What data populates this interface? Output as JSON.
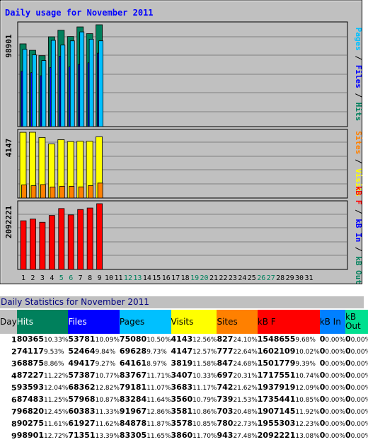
{
  "chart_data": {
    "type": "bar",
    "title": "Daily usage for November 2011",
    "x": [
      "1",
      "2",
      "3",
      "4",
      "5",
      "6",
      "7",
      "8",
      "9",
      "10",
      "11",
      "12",
      "13",
      "14",
      "15",
      "16",
      "17",
      "18",
      "19",
      "20",
      "21",
      "22",
      "23",
      "24",
      "25",
      "26",
      "27",
      "28",
      "29",
      "30",
      "31"
    ],
    "weekend_days": [
      "5",
      "6",
      "12",
      "13",
      "19",
      "20",
      "26",
      "27"
    ],
    "panels": [
      {
        "ylabel": "Pages / Files / Hits",
        "max_label": "98901",
        "ylim": [
          0,
          98901
        ],
        "series": [
          {
            "name": "Hits",
            "color": "#00805c",
            "values": [
              80365,
              74117,
              68875,
              87227,
              93593,
              87483,
              96820,
              90275,
              98901
            ]
          },
          {
            "name": "Files",
            "color": "#0000ff",
            "values": [
              53781,
              52464,
              49417,
              57387,
              68362,
              57968,
              60383,
              61927,
              71351
            ]
          },
          {
            "name": "Pages",
            "color": "#00c0ff",
            "values": [
              75080,
              69628,
              64161,
              83767,
              79181,
              83284,
              91967,
              84878,
              83305
            ]
          }
        ]
      },
      {
        "ylabel": "Sites / Visits",
        "max_label": "4147",
        "ylim": [
          0,
          4147
        ],
        "series": [
          {
            "name": "Visits",
            "color": "#ffff00",
            "values": [
              4143,
              4147,
              3819,
              3407,
              3683,
              3560,
              3581,
              3578,
              3860
            ]
          },
          {
            "name": "Sites",
            "color": "#ff8000",
            "values": [
              827,
              777,
              847,
              697,
              742,
              739,
              703,
              780,
              943
            ]
          }
        ]
      },
      {
        "ylabel": "kB F / kB In / kB Out",
        "max_label": "2092221",
        "ylim": [
          0,
          2092221
        ],
        "series": [
          {
            "name": "kB F",
            "color": "#ff0000",
            "values": [
              1548655,
              1602109,
              1501779,
              1717551,
              1937919,
              1735441,
              1907145,
              1955303,
              2092221
            ]
          }
        ]
      }
    ]
  },
  "table": {
    "title": "Daily Statistics for November 2011",
    "headers": [
      {
        "label": "Day",
        "color": "#c0c0c0"
      },
      {
        "label": "Hits",
        "color": "#00805c"
      },
      {
        "label": "Files",
        "color": "#0000ff"
      },
      {
        "label": "Pages",
        "color": "#00c0ff"
      },
      {
        "label": "Visits",
        "color": "#ffff00"
      },
      {
        "label": "Sites",
        "color": "#ff8000"
      },
      {
        "label": "kB F",
        "color": "#ff0000"
      },
      {
        "label": "kB In",
        "color": "#0080ff"
      },
      {
        "label": "kB Out",
        "color": "#00e090"
      }
    ],
    "rows": [
      {
        "day": "1",
        "hits": "80365",
        "hits_pct": "10.33%",
        "files": "53781",
        "files_pct": "10.09%",
        "pages": "75080",
        "pages_pct": "10.50%",
        "visits": "4143",
        "visits_pct": "12.56%",
        "sites": "827",
        "sites_pct": "24.10%",
        "kbf": "1548655",
        "kbf_pct": "9.68%",
        "kbin": "0",
        "kbin_pct": "0.00%",
        "kbout": "0",
        "kbout_pct": "0.00%"
      },
      {
        "day": "2",
        "hits": "74117",
        "hits_pct": "9.53%",
        "files": "52464",
        "files_pct": "9.84%",
        "pages": "69628",
        "pages_pct": "9.73%",
        "visits": "4147",
        "visits_pct": "12.57%",
        "sites": "777",
        "sites_pct": "22.64%",
        "kbf": "1602109",
        "kbf_pct": "10.02%",
        "kbin": "0",
        "kbin_pct": "0.00%",
        "kbout": "0",
        "kbout_pct": "0.00%"
      },
      {
        "day": "3",
        "hits": "68875",
        "hits_pct": "8.86%",
        "files": "49417",
        "files_pct": "9.27%",
        "pages": "64161",
        "pages_pct": "8.97%",
        "visits": "3819",
        "visits_pct": "11.58%",
        "sites": "847",
        "sites_pct": "24.68%",
        "kbf": "1501779",
        "kbf_pct": "9.39%",
        "kbin": "0",
        "kbin_pct": "0.00%",
        "kbout": "0",
        "kbout_pct": "0.00%"
      },
      {
        "day": "4",
        "hits": "87227",
        "hits_pct": "11.22%",
        "files": "57387",
        "files_pct": "10.77%",
        "pages": "83767",
        "pages_pct": "11.71%",
        "visits": "3407",
        "visits_pct": "10.33%",
        "sites": "697",
        "sites_pct": "20.31%",
        "kbf": "1717551",
        "kbf_pct": "10.74%",
        "kbin": "0",
        "kbin_pct": "0.00%",
        "kbout": "0",
        "kbout_pct": "0.00%"
      },
      {
        "day": "5",
        "hits": "93593",
        "hits_pct": "12.04%",
        "files": "68362",
        "files_pct": "12.82%",
        "pages": "79181",
        "pages_pct": "11.07%",
        "visits": "3683",
        "visits_pct": "11.17%",
        "sites": "742",
        "sites_pct": "21.62%",
        "kbf": "1937919",
        "kbf_pct": "12.09%",
        "kbin": "0",
        "kbin_pct": "0.00%",
        "kbout": "0",
        "kbout_pct": "0.00%"
      },
      {
        "day": "6",
        "hits": "87483",
        "hits_pct": "11.25%",
        "files": "57968",
        "files_pct": "10.87%",
        "pages": "83284",
        "pages_pct": "11.64%",
        "visits": "3560",
        "visits_pct": "10.79%",
        "sites": "739",
        "sites_pct": "21.53%",
        "kbf": "1735441",
        "kbf_pct": "10.85%",
        "kbin": "0",
        "kbin_pct": "0.00%",
        "kbout": "0",
        "kbout_pct": "0.00%"
      },
      {
        "day": "7",
        "hits": "96820",
        "hits_pct": "12.45%",
        "files": "60383",
        "files_pct": "11.33%",
        "pages": "91967",
        "pages_pct": "12.86%",
        "visits": "3581",
        "visits_pct": "10.86%",
        "sites": "703",
        "sites_pct": "20.48%",
        "kbf": "1907145",
        "kbf_pct": "11.92%",
        "kbin": "0",
        "kbin_pct": "0.00%",
        "kbout": "0",
        "kbout_pct": "0.00%"
      },
      {
        "day": "8",
        "hits": "90275",
        "hits_pct": "11.61%",
        "files": "61927",
        "files_pct": "11.62%",
        "pages": "84878",
        "pages_pct": "11.87%",
        "visits": "3578",
        "visits_pct": "10.85%",
        "sites": "780",
        "sites_pct": "22.73%",
        "kbf": "1955303",
        "kbf_pct": "12.23%",
        "kbin": "0",
        "kbin_pct": "0.00%",
        "kbout": "0",
        "kbout_pct": "0.00%"
      },
      {
        "day": "9",
        "hits": "98901",
        "hits_pct": "12.72%",
        "files": "71351",
        "files_pct": "13.39%",
        "pages": "83305",
        "pages_pct": "11.65%",
        "visits": "3860",
        "visits_pct": "11.70%",
        "sites": "943",
        "sites_pct": "27.48%",
        "kbf": "2092221",
        "kbf_pct": "13.08%",
        "kbin": "0",
        "kbin_pct": "0.00%",
        "kbout": "0",
        "kbout_pct": "0.00%"
      }
    ]
  }
}
